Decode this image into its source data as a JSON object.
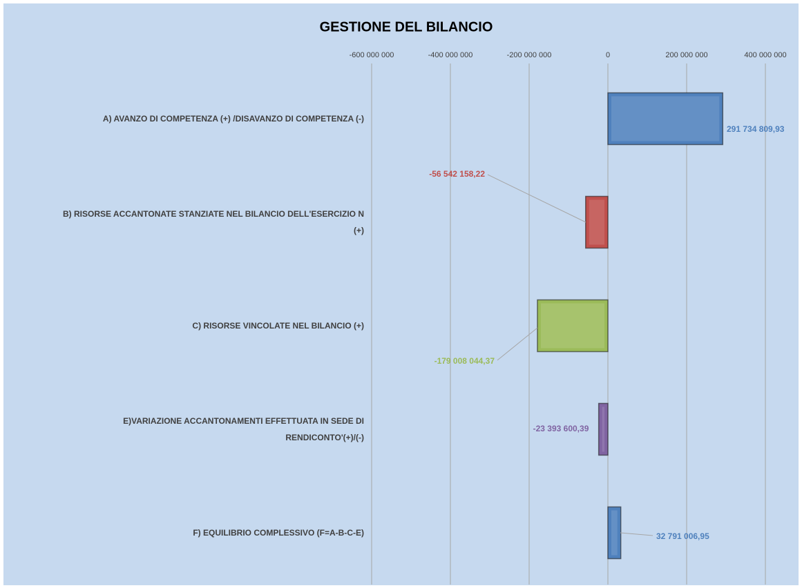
{
  "chart_data": {
    "type": "bar",
    "orientation": "horizontal",
    "title": "GESTIONE DEL BILANCIO",
    "categories": [
      "A) AVANZO DI COMPETENZA (+) /DISAVANZO DI COMPETENZA (-)",
      "B) RISORSE ACCANTONATE  STANZIATE NEL BILANCIO DELL'ESERCIZIO N  (+)",
      "C) RISORSE VINCOLATE NEL BILANCIO (+)",
      "E)VARIAZIONE ACCANTONAMENTI EFFETTUATA IN SEDE DI RENDICONTO'(+)/(-)",
      "F) EQUILIBRIO COMPLESSIVO (F=A-B-C-E)"
    ],
    "values": [
      291734809.93,
      -56542158.22,
      -179008044.37,
      -23393600.39,
      32791006.95
    ],
    "value_labels": [
      "291 734 809,93",
      "-56 542 158,22",
      "-179 008 044,37",
      "-23 393 600,39",
      "32 791 006,95"
    ],
    "colors": [
      "#4f81bd",
      "#c0504d",
      "#9bbb59",
      "#8064a2",
      "#4f81bd"
    ],
    "xlim": [
      -600000000,
      400000000
    ],
    "xticks": [
      {
        "value": -600000000,
        "label": "-600 000 000"
      },
      {
        "value": -400000000,
        "label": "-400 000 000"
      },
      {
        "value": -200000000,
        "label": "-200 000 000"
      },
      0,
      {
        "value": 200000000,
        "label": "200 000 000"
      },
      {
        "value": 400000000,
        "label": "400 000 000"
      }
    ],
    "grid": true
  }
}
